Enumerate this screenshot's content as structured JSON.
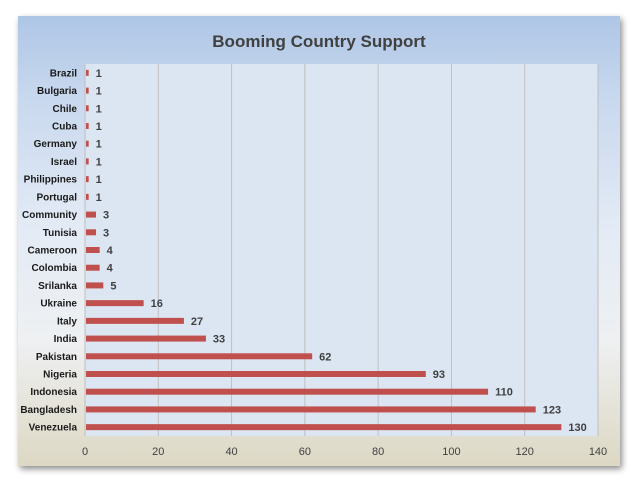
{
  "chart_data": {
    "type": "bar",
    "orientation": "horizontal",
    "title": "Booming Country Support",
    "categories": [
      "Brazil",
      "Bulgaria",
      "Chile",
      "Cuba",
      "Germany",
      "Israel",
      "Philippines",
      "Portugal",
      "Community",
      "Tunisia",
      "Cameroon",
      "Colombia",
      "Srilanka",
      "Ukraine",
      "Italy",
      "India",
      "Pakistan",
      "Nigeria",
      "Indonesia",
      "Bangladesh",
      "Venezuela"
    ],
    "values": [
      1,
      1,
      1,
      1,
      1,
      1,
      1,
      1,
      3,
      3,
      4,
      4,
      5,
      16,
      27,
      33,
      62,
      93,
      110,
      123,
      130
    ],
    "xlim": [
      0,
      140
    ],
    "xticks": [
      0,
      20,
      40,
      60,
      80,
      100,
      120,
      140
    ],
    "grid": true,
    "legend": "none",
    "colors": {
      "bar": "#c0504d",
      "plot_background": "#dce6f2",
      "gridline": "#bfbfbf"
    }
  }
}
